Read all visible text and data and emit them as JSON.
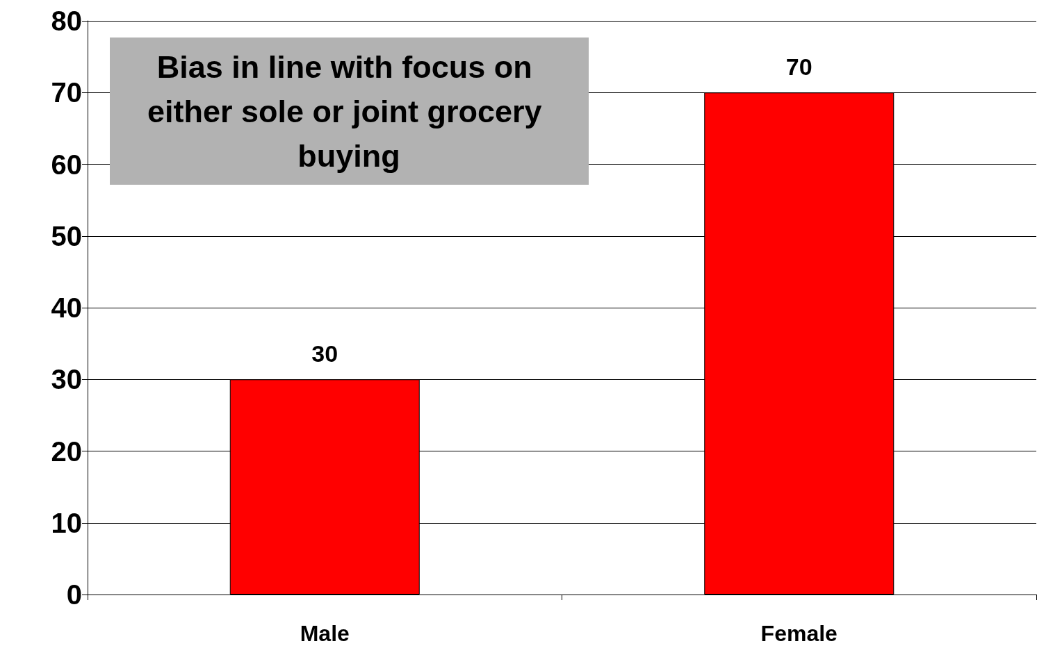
{
  "chart_data": {
    "type": "bar",
    "categories": [
      "Male",
      "Female"
    ],
    "values": [
      30,
      70
    ],
    "color": "#ff0000",
    "ylim": [
      0,
      80
    ],
    "yticks": [
      0,
      10,
      20,
      30,
      40,
      50,
      60,
      70,
      80
    ],
    "grid": "y",
    "data_labels": true,
    "annotations": [
      "Bias in line with focus on either sole or joint grocery buying"
    ]
  }
}
